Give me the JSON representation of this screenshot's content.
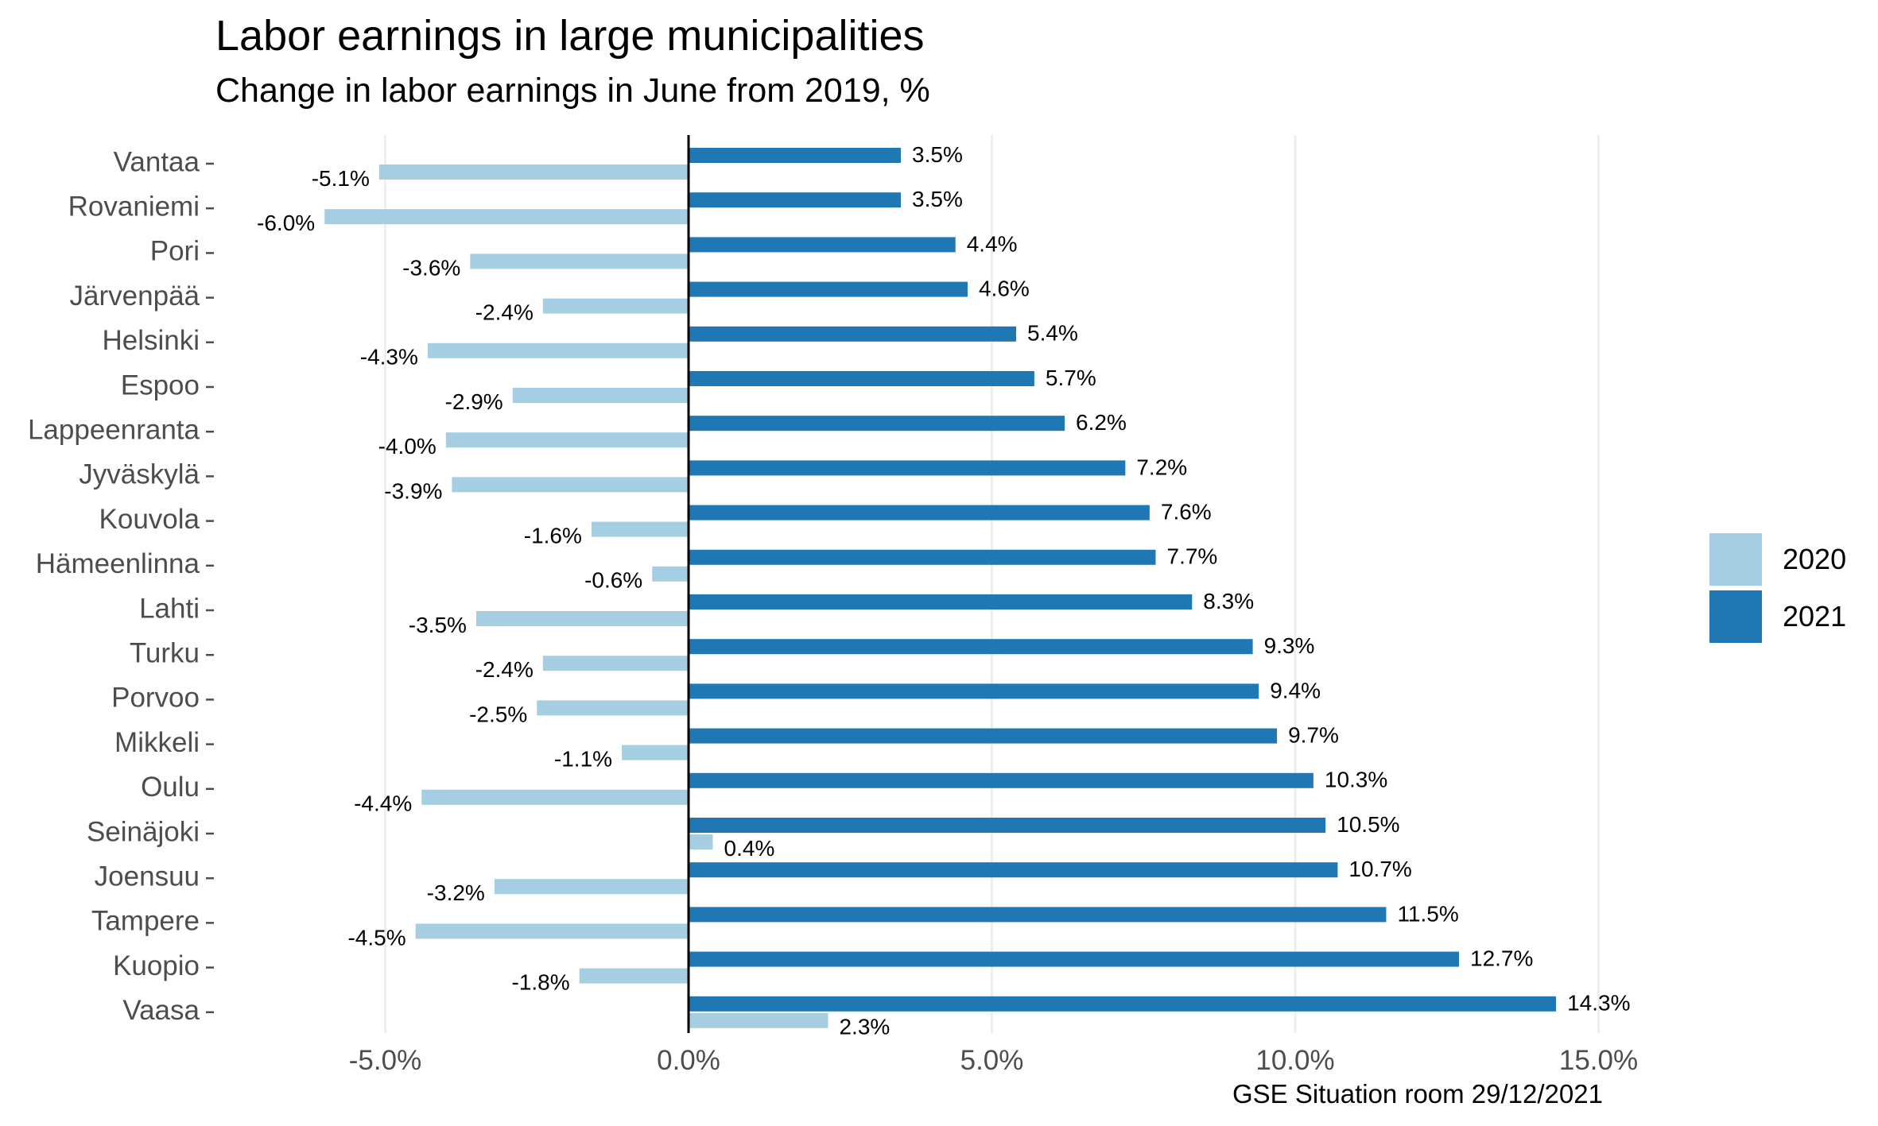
{
  "chart_data": {
    "type": "bar",
    "orientation": "horizontal",
    "title": "Labor earnings in large municipalities",
    "subtitle": "Change in labor earnings in June from 2019, %",
    "caption": "GSE Situation room 29/12/2021",
    "categories": [
      "Vantaa",
      "Rovaniemi",
      "Pori",
      "Järvenpää",
      "Helsinki",
      "Espoo",
      "Lappeenranta",
      "Jyväskylä",
      "Kouvola",
      "Hämeenlinna",
      "Lahti",
      "Turku",
      "Porvoo",
      "Mikkeli",
      "Oulu",
      "Seinäjoki",
      "Joensuu",
      "Tampere",
      "Kuopio",
      "Vaasa"
    ],
    "series": [
      {
        "name": "2020",
        "color": "#a6cee3",
        "values": [
          -5.1,
          -6.0,
          -3.6,
          -2.4,
          -4.3,
          -2.9,
          -4.0,
          -3.9,
          -1.6,
          -0.6,
          -3.5,
          -2.4,
          -2.5,
          -1.1,
          -4.4,
          0.4,
          -3.2,
          -4.5,
          -1.8,
          2.3
        ],
        "labels": [
          "-5.1%",
          "-6.0%",
          "-3.6%",
          "-2.4%",
          "-4.3%",
          "-2.9%",
          "-4.0%",
          "-3.9%",
          "-1.6%",
          "-0.6%",
          "-3.5%",
          "-2.4%",
          "-2.5%",
          "-1.1%",
          "-4.4%",
          "0.4%",
          "-3.2%",
          "-4.5%",
          "-1.8%",
          "2.3%"
        ]
      },
      {
        "name": "2021",
        "color": "#1f78b4",
        "values": [
          3.5,
          3.5,
          4.4,
          4.6,
          5.4,
          5.7,
          6.2,
          7.2,
          7.6,
          7.7,
          8.3,
          9.3,
          9.4,
          9.7,
          10.3,
          10.5,
          10.7,
          11.5,
          12.7,
          14.3
        ],
        "labels": [
          "3.5%",
          "3.5%",
          "4.4%",
          "4.6%",
          "5.4%",
          "5.7%",
          "6.2%",
          "7.2%",
          "7.6%",
          "7.7%",
          "8.3%",
          "9.3%",
          "9.4%",
          "9.7%",
          "10.3%",
          "10.5%",
          "10.7%",
          "11.5%",
          "12.7%",
          "14.3%"
        ]
      }
    ],
    "xlim": [
      -7.6,
      17.6
    ],
    "xticks": [
      -5,
      0,
      5,
      10,
      15
    ],
    "xtick_labels": [
      "-5.0%",
      "0.0%",
      "5.0%",
      "10.0%",
      "15.0%"
    ],
    "xlabel": "",
    "ylabel": "",
    "grid": "vertical major",
    "legend_position": "right"
  },
  "colors": {
    "series_2020": "#a6cee3",
    "series_2021": "#1f78b4",
    "gridline": "#ebebeb",
    "zero_line": "#000000"
  }
}
